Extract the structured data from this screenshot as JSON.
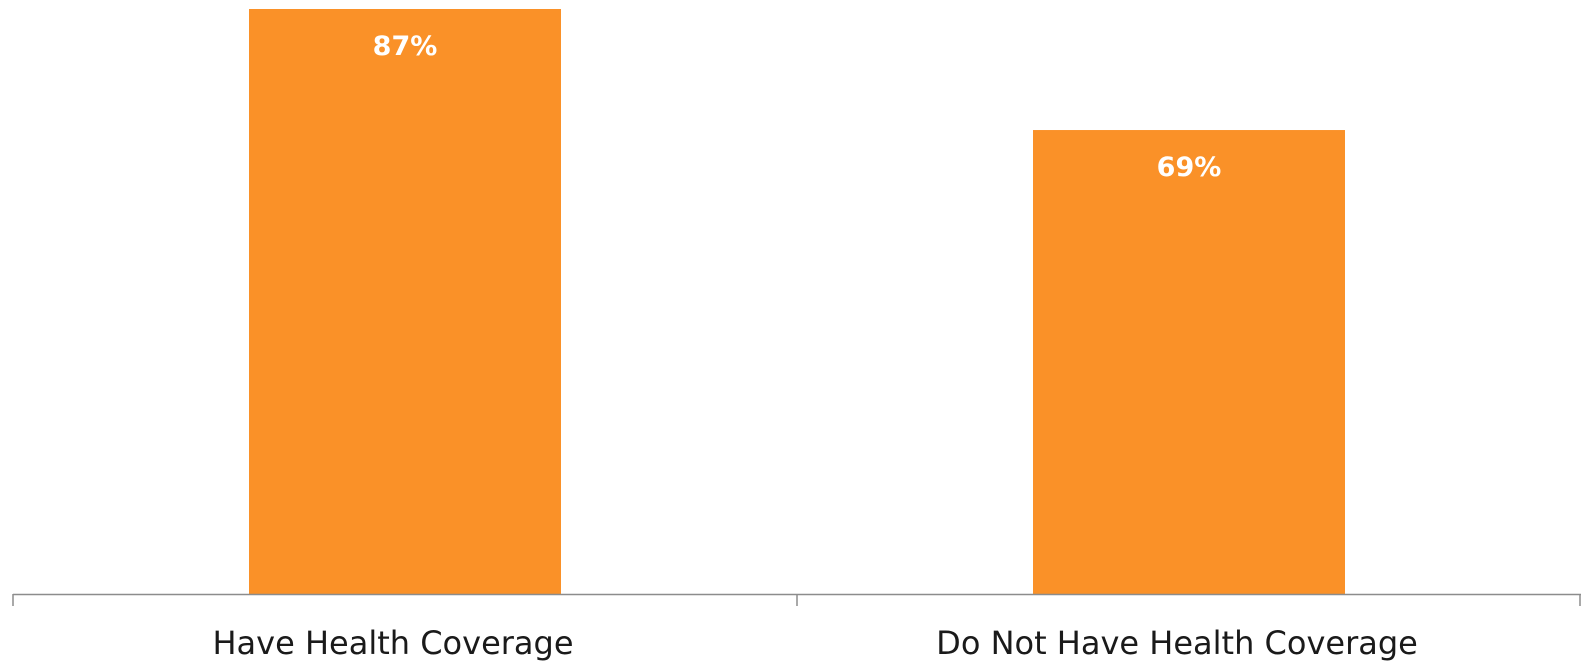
{
  "chart_data": {
    "type": "bar",
    "categories": [
      "Have Health Coverage",
      "Do Not Have Health Coverage"
    ],
    "values": [
      87,
      69
    ],
    "data_labels": [
      "87%",
      "69%"
    ],
    "ylim": [
      0,
      87
    ],
    "grid": false,
    "colors": {
      "bar": "#FA9128",
      "data_label": "#FFFFFF",
      "axis": "#8C8C8C",
      "category_label": "#1A1A1A"
    }
  }
}
